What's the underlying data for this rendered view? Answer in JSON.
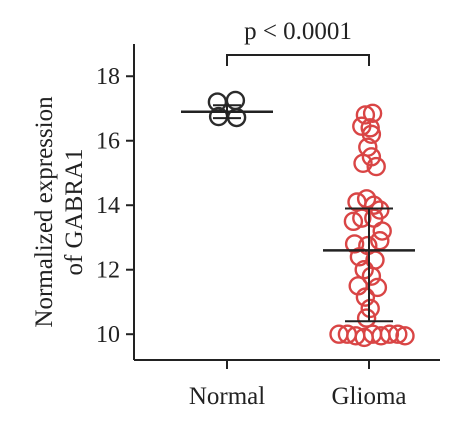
{
  "chart_data": {
    "type": "scatter",
    "ylabel_line1": "Normalized expression",
    "ylabel_line2": "of GABRA1",
    "xlabel": "",
    "categories": [
      "Normal",
      "Glioma"
    ],
    "ylim": [
      9.2,
      19.0
    ],
    "yticks": [
      "10",
      "12",
      "14",
      "16",
      "18"
    ],
    "grid": false,
    "significance": "p < 0.0001",
    "colors": {
      "Normal": "#2b2b2b",
      "Glioma": "#d94545"
    },
    "series": [
      {
        "category": "Normal",
        "mean": 16.9,
        "sd_low": 16.7,
        "sd_high": 17.1,
        "points": [
          {
            "offset": -0.08,
            "y": 17.2
          },
          {
            "offset": 0.07,
            "y": 17.25
          },
          {
            "offset": -0.07,
            "y": 16.75
          },
          {
            "offset": 0.08,
            "y": 16.72
          }
        ]
      },
      {
        "category": "Glioma",
        "mean": 12.6,
        "sd_low": 10.4,
        "sd_high": 13.9,
        "points": [
          {
            "offset": -0.03,
            "y": 16.8
          },
          {
            "offset": 0.03,
            "y": 16.85
          },
          {
            "offset": -0.06,
            "y": 16.45
          },
          {
            "offset": 0.01,
            "y": 16.4
          },
          {
            "offset": 0.02,
            "y": 16.2
          },
          {
            "offset": -0.01,
            "y": 15.8
          },
          {
            "offset": 0.02,
            "y": 15.5
          },
          {
            "offset": -0.05,
            "y": 15.3
          },
          {
            "offset": 0.06,
            "y": 15.2
          },
          {
            "offset": -0.1,
            "y": 14.1
          },
          {
            "offset": -0.02,
            "y": 14.2
          },
          {
            "offset": 0.04,
            "y": 14.0
          },
          {
            "offset": 0.09,
            "y": 13.85
          },
          {
            "offset": -0.13,
            "y": 13.5
          },
          {
            "offset": -0.06,
            "y": 13.6
          },
          {
            "offset": 0.04,
            "y": 13.6
          },
          {
            "offset": 0.11,
            "y": 13.2
          },
          {
            "offset": -0.12,
            "y": 12.8
          },
          {
            "offset": -0.01,
            "y": 12.75
          },
          {
            "offset": 0.09,
            "y": 12.9
          },
          {
            "offset": -0.08,
            "y": 12.4
          },
          {
            "offset": 0.05,
            "y": 12.3
          },
          {
            "offset": -0.04,
            "y": 12.0
          },
          {
            "offset": 0.02,
            "y": 11.8
          },
          {
            "offset": -0.09,
            "y": 11.5
          },
          {
            "offset": 0.07,
            "y": 11.45
          },
          {
            "offset": -0.03,
            "y": 11.15
          },
          {
            "offset": 0.01,
            "y": 10.8
          },
          {
            "offset": -0.02,
            "y": 10.5
          },
          {
            "offset": -0.25,
            "y": 10.0
          },
          {
            "offset": -0.18,
            "y": 10.0
          },
          {
            "offset": -0.11,
            "y": 9.95
          },
          {
            "offset": -0.04,
            "y": 9.9
          },
          {
            "offset": 0.03,
            "y": 10.0
          },
          {
            "offset": 0.1,
            "y": 9.95
          },
          {
            "offset": 0.17,
            "y": 10.0
          },
          {
            "offset": 0.24,
            "y": 10.0
          },
          {
            "offset": 0.3,
            "y": 9.95
          }
        ]
      }
    ]
  }
}
